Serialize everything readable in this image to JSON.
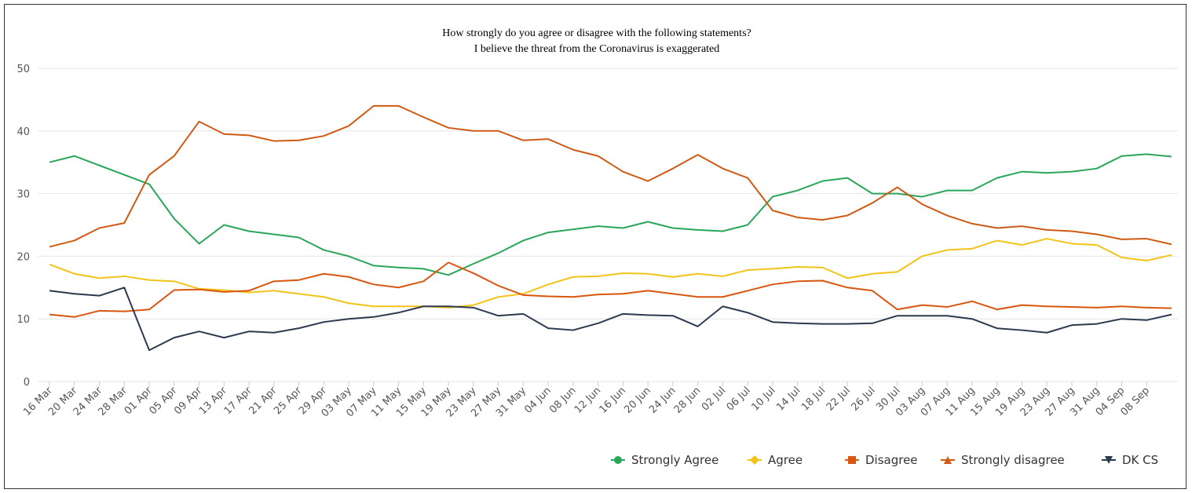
{
  "chart_data": {
    "type": "line",
    "title": [
      "How strongly do you agree or disagree with the following statements?",
      "I believe the threat from the Coronavirus is exaggerated"
    ],
    "categories": [
      "16 Mar",
      "20 Mar",
      "24 Mar",
      "28 Mar",
      "01 Apr",
      "05 Apr",
      "09 Apr",
      "13 Apr",
      "17 Apr",
      "21 Apr",
      "25 Apr",
      "29 Apr",
      "03 May",
      "07 May",
      "11 May",
      "15 May",
      "19 May",
      "23 May",
      "27 May",
      "31 May",
      "04 Jun",
      "08 Jun",
      "12 Jun",
      "16 Jun",
      "20 Jun",
      "24 Jun",
      "28 Jun",
      "02 Jul",
      "06 Jul",
      "10 Jul",
      "14 Jul",
      "18 Jul",
      "22 Jul",
      "26 Jul",
      "30 Jul",
      "03 Aug",
      "07 Aug",
      "11 Aug",
      "15 Aug",
      "19 Aug",
      "23 Aug",
      "27 Aug",
      "31 Aug",
      "04 Sep",
      "08 Sep",
      null
    ],
    "series": [
      {
        "name": "Strongly Agree",
        "color": "#2aa65b",
        "marker": "circle",
        "values": [
          35,
          36,
          34.5,
          33,
          31.5,
          26,
          22,
          25,
          24,
          23.5,
          23,
          21,
          20,
          18.5,
          18.2,
          18,
          17,
          18.8,
          20.5,
          22.5,
          23.8,
          24.3,
          24.8,
          24.5,
          25.5,
          24.5,
          24.2,
          24,
          25,
          29.5,
          30.5,
          32,
          32.5,
          30,
          30,
          29.5,
          30.5,
          30.5,
          32.5,
          33.5,
          33.3,
          33.5,
          34,
          36,
          36.3,
          35.9
        ]
      },
      {
        "name": "Agree",
        "color": "#f2c318",
        "marker": "diamond",
        "values": [
          18.7,
          17.2,
          16.5,
          16.8,
          16.2,
          16,
          14.8,
          14.6,
          14.2,
          14.5,
          14,
          13.5,
          12.5,
          12,
          12,
          12,
          11.8,
          12.2,
          13.5,
          14,
          15.5,
          16.7,
          16.8,
          17.3,
          17.2,
          16.7,
          17.2,
          16.8,
          17.8,
          18,
          18.3,
          18.2,
          16.5,
          17.2,
          17.5,
          20,
          21,
          21.2,
          22.5,
          21.8,
          22.8,
          22,
          21.8,
          19.8,
          19.3,
          20.2
        ]
      },
      {
        "name": "Disagree",
        "color": "#d9560f",
        "marker": "square",
        "values": [
          10.7,
          10.3,
          11.3,
          11.2,
          11.5,
          14.6,
          14.7,
          14.3,
          14.5,
          16,
          16.2,
          17.2,
          16.7,
          15.5,
          15,
          16,
          19,
          17.3,
          15.3,
          13.8,
          13.6,
          13.5,
          13.9,
          14,
          14.5,
          14,
          13.5,
          13.5,
          14.5,
          15.5,
          16,
          16.1,
          15,
          14.5,
          11.5,
          12.2,
          11.9,
          12.8,
          11.5,
          12.2,
          12,
          11.9,
          11.8,
          12,
          11.8,
          11.7
        ]
      },
      {
        "name": "Strongly disagree",
        "color": "#cf5a14",
        "marker": "triangle",
        "values": [
          21.5,
          22.5,
          24.5,
          25.3,
          33,
          36,
          41.5,
          39.5,
          39.3,
          38.4,
          38.5,
          39.2,
          40.8,
          44,
          44,
          42.2,
          40.5,
          40,
          40,
          38.5,
          38.7,
          37,
          36,
          33.5,
          32,
          34,
          36.2,
          34,
          32.5,
          27.3,
          26.2,
          25.8,
          26.5,
          28.5,
          31,
          28.3,
          26.5,
          25.2,
          24.5,
          24.8,
          24.2,
          24,
          23.5,
          22.7,
          22.8,
          21.9
        ]
      },
      {
        "name": "DK CS",
        "color": "#2b3a4f",
        "marker": "triangle-down",
        "values": [
          14.5,
          14,
          13.7,
          15,
          5,
          7,
          8,
          7,
          8,
          7.8,
          8.5,
          9.5,
          10,
          10.3,
          11,
          12,
          12,
          11.8,
          10.5,
          10.8,
          8.5,
          8.2,
          9.3,
          10.8,
          10.6,
          10.5,
          8.8,
          12,
          11,
          9.5,
          9.3,
          9.2,
          9.2,
          9.3,
          10.5,
          10.5,
          10.5,
          10,
          8.5,
          8.2,
          7.8,
          9,
          9.2,
          10,
          9.8,
          10.7
        ]
      }
    ],
    "ylim": [
      0,
      50
    ],
    "yticks": [
      0,
      10,
      20,
      30,
      40,
      50
    ],
    "grid": true,
    "legend": "bottom-right"
  }
}
